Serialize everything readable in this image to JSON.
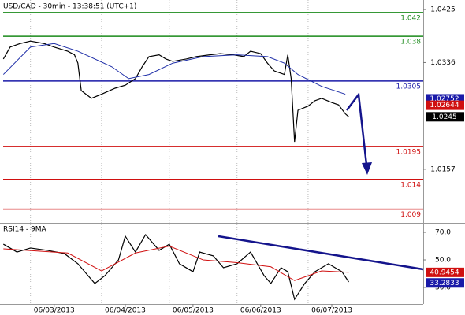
{
  "chart_data": [
    {
      "type": "line",
      "title": "USD/CAD - 30min - 13:38:51 (UTC+1)",
      "xlim": [
        0,
        125
      ],
      "ylim": [
        1.0067,
        1.0441
      ],
      "yticks": [
        1.0425,
        1.0336,
        1.0157
      ],
      "series": [
        {
          "color": "#000000",
          "x": [
            1,
            3,
            6,
            9,
            13,
            16,
            20,
            22,
            23,
            24,
            27,
            30,
            34,
            37,
            40,
            42,
            44,
            47,
            49,
            51,
            55,
            58,
            62,
            65,
            69,
            72,
            74,
            77,
            79,
            81,
            84,
            85,
            86,
            87,
            88,
            91,
            93,
            95,
            98,
            100,
            102,
            103
          ],
          "values": [
            1.0342,
            1.0362,
            1.0368,
            1.0372,
            1.0368,
            1.0362,
            1.0355,
            1.0349,
            1.0335,
            1.0289,
            1.0276,
            1.0283,
            1.0293,
            1.0298,
            1.0309,
            1.0329,
            1.0346,
            1.0349,
            1.0342,
            1.0338,
            1.0342,
            1.0346,
            1.0349,
            1.0351,
            1.0349,
            1.0346,
            1.0355,
            1.0351,
            1.0335,
            1.0322,
            1.0316,
            1.0349,
            1.0309,
            1.0203,
            1.0256,
            1.0263,
            1.0272,
            1.0276,
            1.0269,
            1.0265,
            1.025,
            1.0245
          ]
        },
        {
          "color": "#1f2fa8",
          "x": [
            1,
            9,
            16,
            23,
            33,
            38,
            44,
            51,
            60,
            70,
            79,
            84,
            88,
            95,
            102
          ],
          "values": [
            1.0316,
            1.0362,
            1.0368,
            1.0355,
            1.0329,
            1.0309,
            1.0316,
            1.0335,
            1.0346,
            1.0349,
            1.0346,
            1.0335,
            1.0316,
            1.0296,
            1.0283
          ]
        }
      ],
      "levels": [
        {
          "value": 1.042,
          "label": "1.042",
          "color": "#1a8a1a"
        },
        {
          "value": 1.038,
          "label": "1.038",
          "color": "#1a8a1a"
        },
        {
          "value": 1.0305,
          "label": "1.0305",
          "color": "#1a1aa8"
        },
        {
          "value": 1.0195,
          "label": "1.0195",
          "color": "#d01010"
        },
        {
          "value": 1.014,
          "label": "1.014",
          "color": "#d01010"
        },
        {
          "value": 1.009,
          "label": "1.009",
          "color": "#d01010"
        }
      ],
      "price_boxes": [
        {
          "value": 1.02752,
          "color": "#1a1aa8"
        },
        {
          "value": 1.02644,
          "color": "#d01010"
        },
        {
          "value": 1.0245,
          "color": "#000000"
        }
      ],
      "date_ticks": [
        {
          "value": 16,
          "label": "06/03/2013"
        },
        {
          "value": 37,
          "label": "06/04/2013"
        },
        {
          "value": 57,
          "label": "06/05/2013"
        },
        {
          "value": 77,
          "label": "06/06/2013"
        },
        {
          "value": 98,
          "label": "06/07/2013"
        }
      ],
      "day_starts": [
        9,
        30,
        50,
        70,
        91
      ]
    },
    {
      "type": "line",
      "title": "RSI14 - 9MA",
      "ylim": [
        18,
        76.3
      ],
      "yticks": [
        {
          "value": 70,
          "label": "70.0"
        },
        {
          "value": 50,
          "label": "50.0"
        },
        {
          "value": 30,
          "label": "30.0"
        }
      ],
      "series": [
        {
          "color": "#000000",
          "x": [
            1,
            5,
            9,
            14,
            19,
            23,
            26,
            28,
            31,
            35,
            37,
            40,
            43,
            47,
            50,
            53,
            57,
            59,
            63,
            66,
            70,
            74,
            78,
            80,
            83,
            85,
            87,
            90,
            93,
            97,
            99,
            101,
            103
          ],
          "values": [
            61.4,
            55.7,
            58.6,
            56.9,
            54.6,
            47.2,
            38.6,
            32.9,
            38.6,
            50,
            67.2,
            55.7,
            68.3,
            56.9,
            61.4,
            47.2,
            41.4,
            55.7,
            52.9,
            44.3,
            47.2,
            55.7,
            38.6,
            32.9,
            44.3,
            41.4,
            21.4,
            32.9,
            41.4,
            47.2,
            44.3,
            41.4,
            34.0
          ]
        },
        {
          "color": "#d01010",
          "x": [
            1,
            20,
            30,
            40,
            50,
            60,
            70,
            80,
            87,
            95,
            103
          ],
          "values": [
            58,
            55,
            42,
            55,
            60,
            50,
            48,
            45,
            35,
            42,
            41
          ]
        }
      ],
      "value_boxes": [
        {
          "value": 40.9454,
          "color": "#d01010"
        },
        {
          "value": 33.2833,
          "color": "#1a1aa8"
        }
      ]
    }
  ]
}
